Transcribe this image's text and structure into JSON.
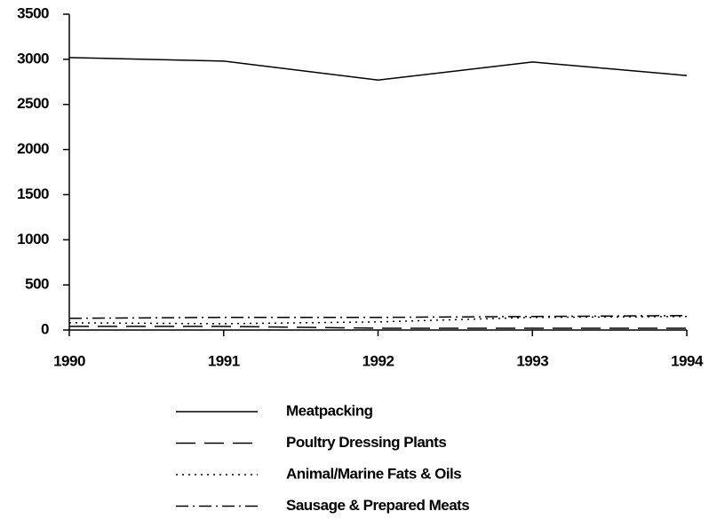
{
  "chart_data": {
    "type": "line",
    "categories": [
      "1990",
      "1991",
      "1992",
      "1993",
      "1994"
    ],
    "series": [
      {
        "name": "Meatpacking",
        "color": "#000000",
        "dash": "solid",
        "values": [
          3020,
          2980,
          2770,
          2970,
          2820
        ]
      },
      {
        "name": "Poultry Dressing Plants",
        "color": "#000000",
        "dash": "dashed",
        "values": [
          40,
          40,
          20,
          20,
          20
        ]
      },
      {
        "name": "Animal/Marine Fats & Oils",
        "color": "#000000",
        "dash": "dotted",
        "values": [
          80,
          70,
          90,
          140,
          150
        ]
      },
      {
        "name": "Sausage & Prepared Meats",
        "color": "#000000",
        "dash": "dashdot",
        "values": [
          130,
          140,
          140,
          150,
          160
        ]
      }
    ],
    "ylim": [
      0,
      3500
    ],
    "yticks": [
      0,
      500,
      1000,
      1500,
      2000,
      2500,
      3000,
      3500
    ],
    "grid": false,
    "legend": "bottom"
  }
}
